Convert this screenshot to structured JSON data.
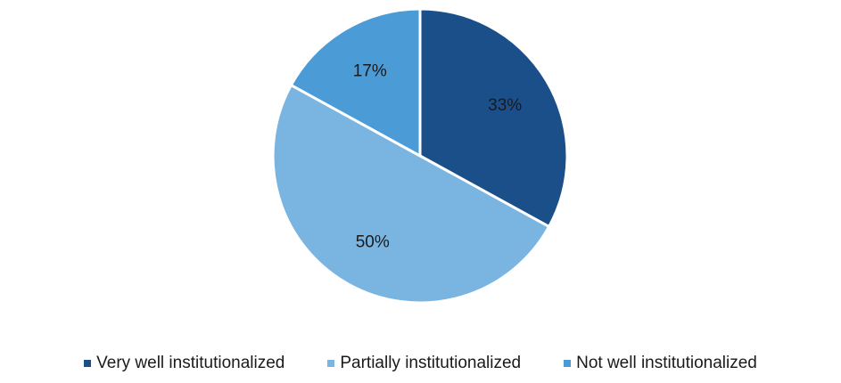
{
  "chart_data": {
    "type": "pie",
    "categories": [
      "Very well institutionalized",
      "Partially institutionalized",
      "Not well institutionalized"
    ],
    "values": [
      33,
      50,
      17
    ],
    "labels": [
      "33%",
      "50%",
      "17%"
    ],
    "colors": [
      "#1b4f8a",
      "#7ab4e0",
      "#4b9bd6"
    ],
    "start_angle_deg": 0,
    "direction": "clockwise",
    "legend_position": "bottom",
    "title": ""
  }
}
